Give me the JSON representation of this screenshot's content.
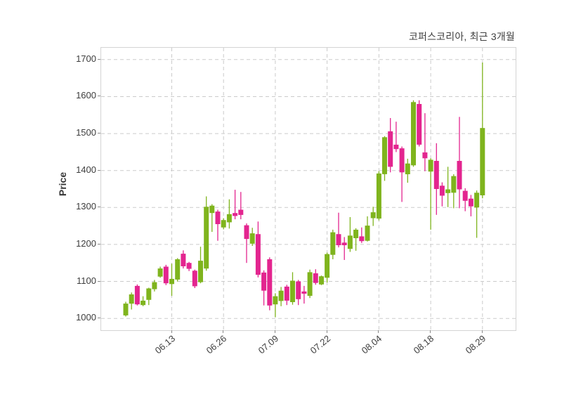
{
  "title": "코퍼스코리아, 최근 3개월",
  "colors": {
    "up": "#7fb41d",
    "down": "#e3258f",
    "grid": "#cbcbcb",
    "spine": "#d4d4d4",
    "text": "#3d3d3d",
    "background": "#ffffff"
  },
  "chart_data": {
    "type": "candlestick",
    "title": "코퍼스코리아, 최근 3개월",
    "ylabel": "Price",
    "xlabel": "",
    "grid": true,
    "legend": false,
    "y_ticks": [
      1000,
      1100,
      1200,
      1300,
      1400,
      1500,
      1600,
      1700
    ],
    "ylim": [
      968,
      1732
    ],
    "x_tick_labels": [
      "06.13",
      "06.26",
      "07.09",
      "07.22",
      "08.04",
      "08.18",
      "08.29"
    ],
    "x_tick_indices": [
      8,
      17,
      26,
      35,
      44,
      53,
      62
    ],
    "up_color": "#7fb41d",
    "down_color": "#e3258f",
    "candles_format": [
      "open",
      "high",
      "low",
      "close"
    ],
    "candles": [
      [
        1008,
        1045,
        1005,
        1040
      ],
      [
        1040,
        1070,
        1024,
        1065
      ],
      [
        1088,
        1092,
        1035,
        1038
      ],
      [
        1036,
        1060,
        1033,
        1048
      ],
      [
        1050,
        1083,
        1036,
        1081
      ],
      [
        1079,
        1104,
        1073,
        1098
      ],
      [
        1113,
        1140,
        1110,
        1135
      ],
      [
        1140,
        1145,
        1090,
        1095
      ],
      [
        1093,
        1148,
        1061,
        1107
      ],
      [
        1105,
        1163,
        1100,
        1160
      ],
      [
        1175,
        1184,
        1135,
        1141
      ],
      [
        1150,
        1153,
        1128,
        1134
      ],
      [
        1129,
        1132,
        1082,
        1087
      ],
      [
        1098,
        1194,
        1095,
        1156
      ],
      [
        1135,
        1330,
        1129,
        1302
      ],
      [
        1285,
        1309,
        1234,
        1305
      ],
      [
        1289,
        1294,
        1210,
        1255
      ],
      [
        1246,
        1271,
        1241,
        1266
      ],
      [
        1260,
        1322,
        1243,
        1282
      ],
      [
        1285,
        1348,
        1268,
        1277
      ],
      [
        1294,
        1342,
        1268,
        1280
      ],
      [
        1252,
        1257,
        1150,
        1215
      ],
      [
        1202,
        1245,
        1196,
        1230
      ],
      [
        1228,
        1262,
        1111,
        1118
      ],
      [
        1124,
        1130,
        1035,
        1075
      ],
      [
        1160,
        1165,
        1022,
        1035
      ],
      [
        1038,
        1068,
        1003,
        1060
      ],
      [
        1047,
        1085,
        1033,
        1075
      ],
      [
        1086,
        1091,
        1036,
        1048
      ],
      [
        1044,
        1125,
        1037,
        1102
      ],
      [
        1100,
        1104,
        1036,
        1052
      ],
      [
        1073,
        1088,
        1040,
        1067
      ],
      [
        1061,
        1132,
        1055,
        1125
      ],
      [
        1122,
        1133,
        1091,
        1096
      ],
      [
        1092,
        1116,
        1090,
        1114
      ],
      [
        1110,
        1178,
        1097,
        1174
      ],
      [
        1172,
        1240,
        1160,
        1233
      ],
      [
        1228,
        1286,
        1192,
        1198
      ],
      [
        1205,
        1220,
        1158,
        1198
      ],
      [
        1188,
        1274,
        1180,
        1224
      ],
      [
        1217,
        1244,
        1183,
        1240
      ],
      [
        1222,
        1246,
        1204,
        1209
      ],
      [
        1210,
        1276,
        1208,
        1251
      ],
      [
        1271,
        1302,
        1250,
        1287
      ],
      [
        1270,
        1398,
        1265,
        1392
      ],
      [
        1390,
        1493,
        1372,
        1490
      ],
      [
        1506,
        1542,
        1395,
        1410
      ],
      [
        1470,
        1532,
        1450,
        1458
      ],
      [
        1460,
        1465,
        1315,
        1395
      ],
      [
        1390,
        1432,
        1367,
        1419
      ],
      [
        1414,
        1590,
        1410,
        1585
      ],
      [
        1580,
        1590,
        1465,
        1470
      ],
      [
        1449,
        1555,
        1398,
        1433
      ],
      [
        1397,
        1433,
        1240,
        1429
      ],
      [
        1426,
        1474,
        1280,
        1350
      ],
      [
        1359,
        1368,
        1303,
        1332
      ],
      [
        1339,
        1410,
        1301,
        1349
      ],
      [
        1340,
        1390,
        1298,
        1385
      ],
      [
        1426,
        1545,
        1298,
        1349
      ],
      [
        1345,
        1352,
        1290,
        1318
      ],
      [
        1324,
        1334,
        1276,
        1303
      ],
      [
        1300,
        1346,
        1218,
        1340
      ],
      [
        1333,
        1692,
        1325,
        1515
      ]
    ]
  }
}
